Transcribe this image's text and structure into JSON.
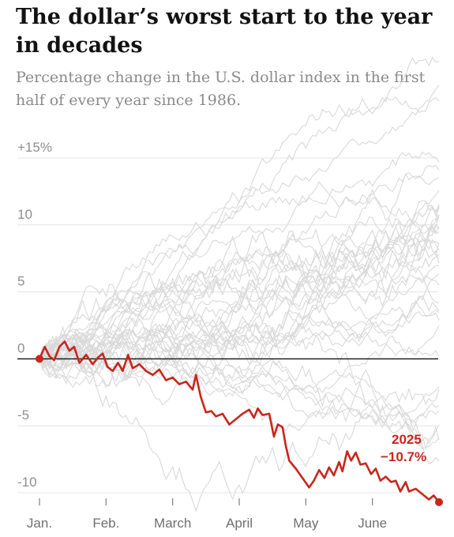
{
  "chart_data": {
    "type": "line",
    "title": "The dollar’s worst start to the year in decades",
    "subtitle": "Percentage change in the U.S. dollar index in the first half of every year since 1986.",
    "xlabel": "",
    "ylabel": "",
    "x_months": [
      "Jan.",
      "Feb.",
      "March",
      "April",
      "May",
      "June"
    ],
    "y_ticks": [
      {
        "value": 15,
        "label": "+15%"
      },
      {
        "value": 10,
        "label": "10"
      },
      {
        "value": 5,
        "label": "5"
      },
      {
        "value": 0,
        "label": "0"
      },
      {
        "value": -5,
        "label": "-5"
      },
      {
        "value": -10,
        "label": "-10"
      }
    ],
    "ylim": [
      -11,
      16
    ],
    "xlim_months": [
      0,
      6
    ],
    "grid": true,
    "highlight_color": "#c8261c",
    "background_color": "#d9d9d9",
    "highlight": {
      "year": "2025",
      "label": "−10.7%",
      "points": [
        [
          0.0,
          0.0
        ],
        [
          0.08,
          0.9
        ],
        [
          0.15,
          0.2
        ],
        [
          0.22,
          -0.1
        ],
        [
          0.3,
          0.9
        ],
        [
          0.38,
          1.3
        ],
        [
          0.45,
          0.6
        ],
        [
          0.52,
          0.9
        ],
        [
          0.6,
          -0.3
        ],
        [
          0.7,
          0.3
        ],
        [
          0.8,
          -0.4
        ],
        [
          0.88,
          0.1
        ],
        [
          0.95,
          0.4
        ],
        [
          1.02,
          -0.6
        ],
        [
          1.1,
          -0.9
        ],
        [
          1.18,
          -0.3
        ],
        [
          1.25,
          -0.9
        ],
        [
          1.33,
          0.3
        ],
        [
          1.4,
          -0.7
        ],
        [
          1.5,
          -0.4
        ],
        [
          1.6,
          -0.9
        ],
        [
          1.7,
          -1.2
        ],
        [
          1.8,
          -0.8
        ],
        [
          1.9,
          -1.6
        ],
        [
          2.0,
          -1.4
        ],
        [
          2.1,
          -1.9
        ],
        [
          2.2,
          -1.7
        ],
        [
          2.3,
          -2.3
        ],
        [
          2.35,
          -1.2
        ],
        [
          2.42,
          -2.8
        ],
        [
          2.5,
          -4.0
        ],
        [
          2.58,
          -3.9
        ],
        [
          2.65,
          -4.3
        ],
        [
          2.75,
          -4.1
        ],
        [
          2.85,
          -4.9
        ],
        [
          2.95,
          -4.5
        ],
        [
          3.05,
          -4.1
        ],
        [
          3.15,
          -3.8
        ],
        [
          3.22,
          -4.4
        ],
        [
          3.28,
          -3.7
        ],
        [
          3.35,
          -4.2
        ],
        [
          3.45,
          -4.1
        ],
        [
          3.52,
          -5.8
        ],
        [
          3.58,
          -4.9
        ],
        [
          3.65,
          -5.1
        ],
        [
          3.7,
          -6.5
        ],
        [
          3.75,
          -7.6
        ],
        [
          3.85,
          -8.2
        ],
        [
          3.95,
          -8.9
        ],
        [
          4.05,
          -9.6
        ],
        [
          4.12,
          -9.1
        ],
        [
          4.2,
          -8.3
        ],
        [
          4.28,
          -8.9
        ],
        [
          4.35,
          -8.1
        ],
        [
          4.42,
          -8.7
        ],
        [
          4.5,
          -7.7
        ],
        [
          4.55,
          -8.4
        ],
        [
          4.62,
          -6.9
        ],
        [
          4.68,
          -7.6
        ],
        [
          4.75,
          -7.0
        ],
        [
          4.82,
          -7.9
        ],
        [
          4.9,
          -7.8
        ],
        [
          4.98,
          -8.6
        ],
        [
          5.05,
          -8.2
        ],
        [
          5.12,
          -9.1
        ],
        [
          5.2,
          -8.8
        ],
        [
          5.28,
          -9.2
        ],
        [
          5.35,
          -9.1
        ],
        [
          5.42,
          -9.9
        ],
        [
          5.5,
          -9.2
        ],
        [
          5.55,
          -9.9
        ],
        [
          5.65,
          -9.7
        ],
        [
          5.75,
          -10.1
        ],
        [
          5.85,
          -10.5
        ],
        [
          5.92,
          -10.2
        ],
        [
          6.0,
          -10.7
        ]
      ]
    }
  }
}
